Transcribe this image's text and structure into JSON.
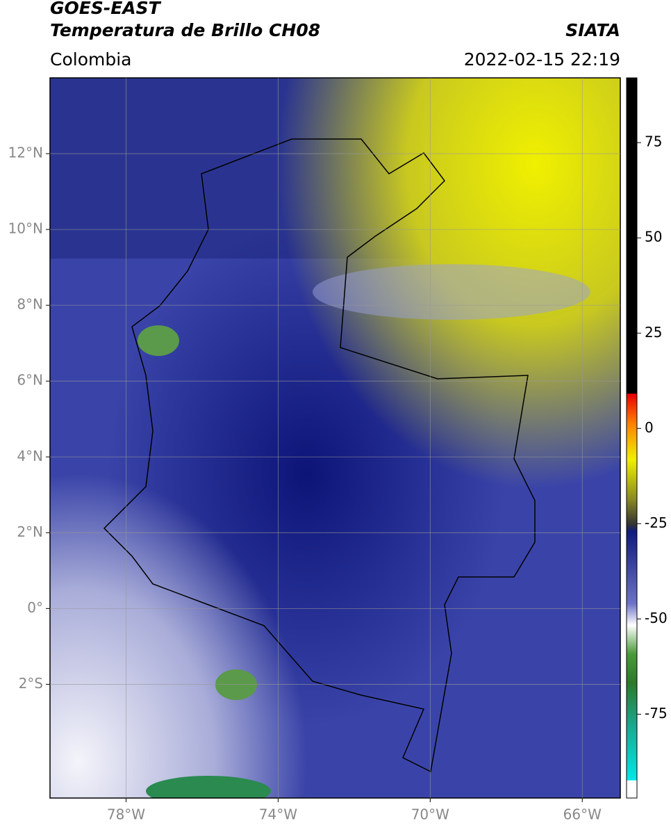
{
  "header": {
    "title": "GOES-EAST",
    "subtitle": "Temperatura de Brillo CH08",
    "source": "SIATA",
    "region": "Colombia",
    "datetime": "2022-02-15 22:19"
  },
  "map": {
    "xlim": [
      -80,
      -65
    ],
    "ylim": [
      -5,
      14
    ],
    "xticks": [
      {
        "value": -78,
        "label": "78°W"
      },
      {
        "value": -74,
        "label": "74°W"
      },
      {
        "value": -70,
        "label": "70°W"
      },
      {
        "value": -66,
        "label": "66°W"
      }
    ],
    "yticks": [
      {
        "value": 12,
        "label": "12°N"
      },
      {
        "value": 10,
        "label": "10°N"
      },
      {
        "value": 8,
        "label": "8°N"
      },
      {
        "value": 6,
        "label": "6°N"
      },
      {
        "value": 4,
        "label": "4°N"
      },
      {
        "value": 2,
        "label": "2°N"
      },
      {
        "value": 0,
        "label": "0°"
      },
      {
        "value": -2,
        "label": "2°S"
      }
    ],
    "grid": true
  },
  "colorbar": {
    "lim": [
      -97,
      92
    ],
    "ticks": [
      75,
      50,
      25,
      0,
      -25,
      -50,
      -75
    ]
  }
}
